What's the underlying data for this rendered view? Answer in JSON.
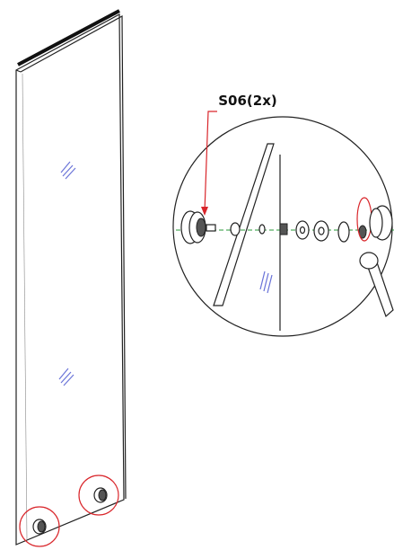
{
  "callout": {
    "label": "S06(2x)"
  }
}
